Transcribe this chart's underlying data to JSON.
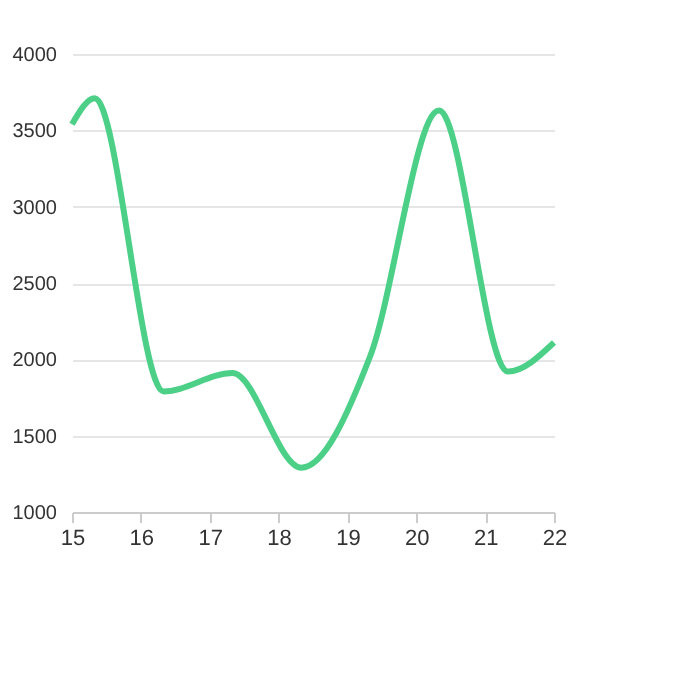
{
  "chart_data": {
    "type": "line",
    "x": [
      15,
      15.33,
      16.33,
      17.33,
      18.33,
      19.33,
      20.33,
      21.33,
      22
    ],
    "series": [
      {
        "color": "#4cd087",
        "values": [
          3540,
          3710,
          1790,
          1910,
          1290,
          2020,
          3630,
          1920,
          2110
        ]
      }
    ],
    "xlim": [
      15,
      22
    ],
    "xticks": [
      15,
      16,
      17,
      18,
      19,
      20,
      21,
      22
    ],
    "ylim": [
      1000,
      4000
    ],
    "yticks": [
      1000,
      1500,
      2000,
      2500,
      3000,
      3500,
      4000
    ],
    "grid": "y",
    "marker": "none",
    "line_style": "solid"
  }
}
